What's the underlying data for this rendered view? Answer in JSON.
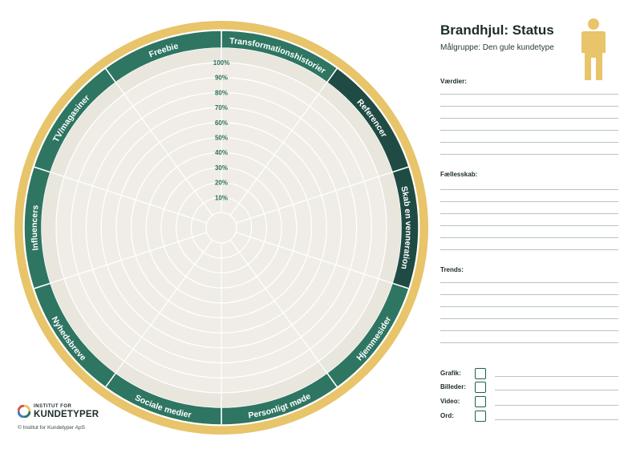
{
  "header": {
    "title": "Brandhjul: Status",
    "subtitle": "Målgruppe: Den gule kundetype"
  },
  "icons": {
    "person": "person-icon",
    "logo": "kundetyper-logo-icon"
  },
  "colors": {
    "gold": "#e8c46a",
    "dark_green": "#1f4b44",
    "green": "#2e7562",
    "inner_bg": "#efede6",
    "ring_bg": "#e8e6dd",
    "scale_text": "#2e6e58"
  },
  "wheel": {
    "segments": [
      "Transformationshistorier",
      "Referencer",
      "Skab en venneration",
      "Hjemmesider",
      "Personligt møde",
      "Sociale medier",
      "Nyhedsbreve",
      "Influencers",
      "TV/magasiner",
      "Freebie"
    ],
    "dark_segments": [
      1,
      2
    ],
    "scale": [
      "10%",
      "20%",
      "30%",
      "40%",
      "50%",
      "60%",
      "70%",
      "80%",
      "90%",
      "100%"
    ]
  },
  "sections": [
    {
      "label": "Værdier:"
    },
    {
      "label": "Fællesskab:"
    },
    {
      "label": "Trends:"
    }
  ],
  "media": [
    {
      "label": "Grafik:"
    },
    {
      "label": "Billeder:"
    },
    {
      "label": "Video:"
    },
    {
      "label": "Ord:"
    }
  ],
  "footer": {
    "logo_small": "INSTITUT FOR",
    "logo_big": "KUNDETYPER",
    "copyright": "© Institut for Kundetyper ApS"
  }
}
